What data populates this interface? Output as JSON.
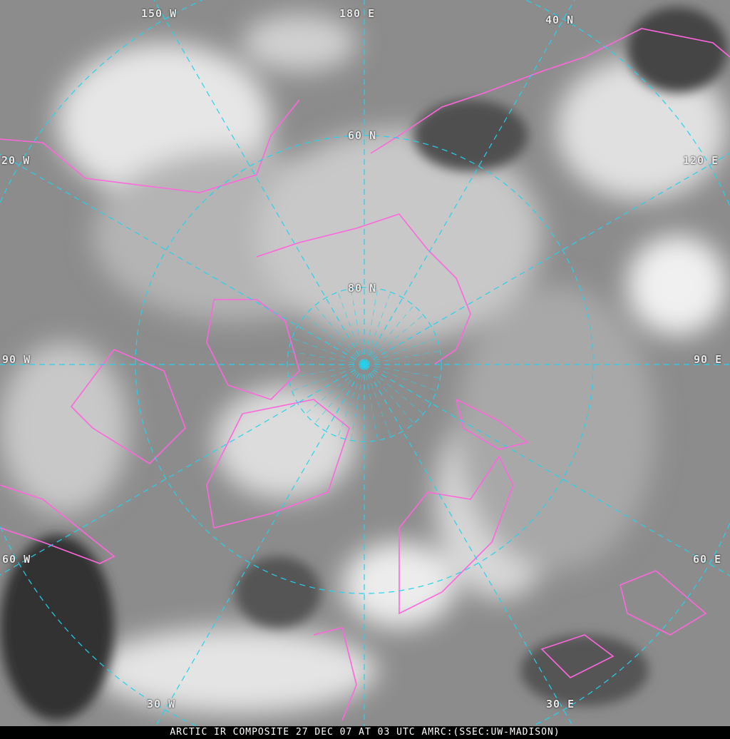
{
  "caption": "ARCTIC IR COMPOSITE 27 DEC 07 AT 03 UTC AMRC:(SSEC:UW-MADISON)",
  "colors": {
    "graticule": "#22d3ee",
    "coastline": "#ff66dd",
    "background": "#8a8a8a"
  },
  "labels": {
    "lon_150w": "150 W",
    "lon_180e": "180 E",
    "lat_40n": "40 N",
    "lon_120w": "20 W",
    "lat_60n": "60 N",
    "lon_120e": "120 E",
    "lat_80n": "80 N",
    "lon_90w": "90 W",
    "lon_90e": "90 E",
    "lon_60w": "60 W",
    "lon_60e": "60 E",
    "lon_30w": "30 W",
    "lon_30e": "30 E"
  }
}
